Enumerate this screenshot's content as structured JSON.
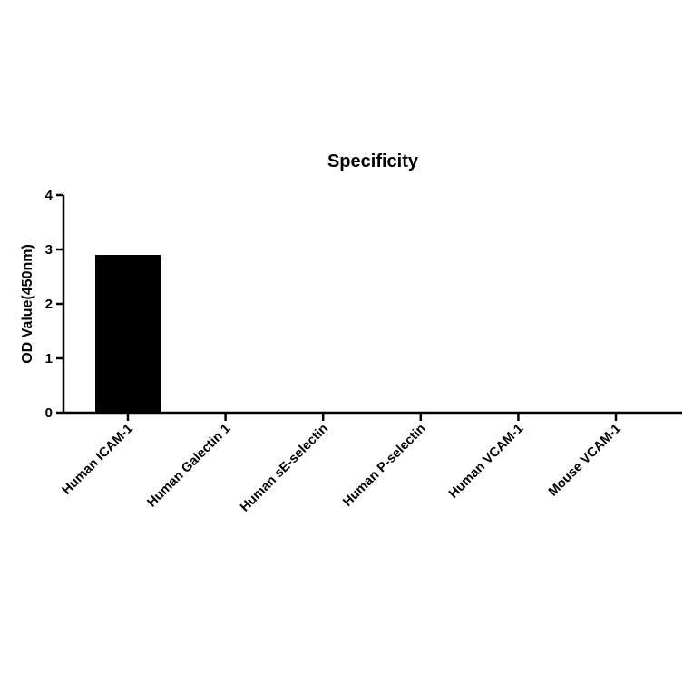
{
  "chart_data": {
    "type": "bar",
    "title": "Specificity",
    "xlabel": "",
    "ylabel": "OD Value(450nm)",
    "categories": [
      "Human ICAM-1",
      "Human Galectin 1",
      "Human sE-selectin",
      "Human P-selectin",
      "Human VCAM-1",
      "Mouse VCAM-1"
    ],
    "values": [
      2.9,
      0.0,
      0.0,
      0.0,
      0.0,
      0.0
    ],
    "ylim": [
      0,
      4
    ],
    "yticks": [
      "0",
      "1",
      "2",
      "3",
      "4"
    ],
    "grid": false,
    "legend": "none",
    "bar_color": "#000000"
  }
}
